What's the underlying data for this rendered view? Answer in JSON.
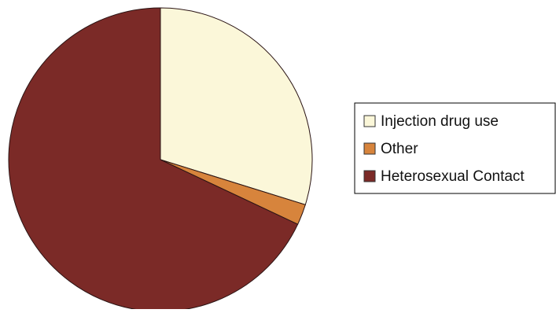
{
  "chart_data": {
    "type": "pie",
    "title": "",
    "slices": [
      {
        "label": "Injection drug use",
        "value": 29.8,
        "color": "#fbf7d9"
      },
      {
        "label": "Other",
        "value": 2.2,
        "color": "#d7843c"
      },
      {
        "label": "Heterosexual Contact",
        "value": 68.0,
        "color": "#7b2a27"
      }
    ],
    "start_angle_deg": 0,
    "direction": "clockwise",
    "legend": {
      "position": "right",
      "entries": [
        "Injection drug use",
        "Other",
        "Heterosexual Contact"
      ]
    },
    "grid": false
  }
}
